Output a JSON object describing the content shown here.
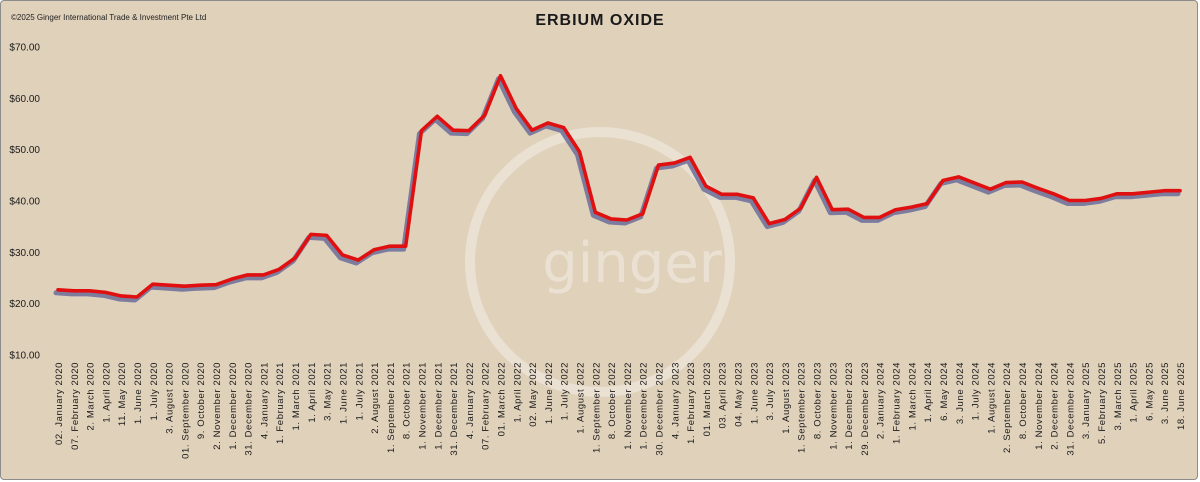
{
  "copyright": "©2025 Ginger International Trade & Investment Pte Ltd",
  "watermark": "ginger",
  "chart_data": {
    "type": "line",
    "title": "ERBIUM OXIDE",
    "ylim": [
      10,
      70
    ],
    "yticks": [
      "$10.00",
      "$20.00",
      "$30.00",
      "$40.00",
      "$50.00",
      "$60.00",
      "$70.00"
    ],
    "ytick_values": [
      10,
      20,
      30,
      40,
      50,
      60,
      70
    ],
    "grid": false,
    "line_color": "#e01010",
    "shadow_color": "#6a6d9a",
    "x_labels": [
      "02. January 2020",
      "07. February 2020",
      "2. March 2020",
      "1. April 2020",
      "11. May 2020",
      "1. June 2020",
      "1. July 2020",
      "3. August 2020",
      "01. September 2020",
      "9. October 2020",
      "2. November 2020",
      "1. December 2020",
      "31. December 2020",
      "4. January 2021",
      "1. February 2021",
      "1. March 2021",
      "1. April 2021",
      "3. May 2021",
      "1. June 2021",
      "1. July 2021",
      "2. August 2021",
      "1. September 2021",
      "8. October 2021",
      "1. November 2021",
      "1. December 2021",
      "31. December 2021",
      "4. January 2022",
      "07. February 2022",
      "01. March 2022",
      "1. April 2022",
      "02. May 2022",
      "1. June 2022",
      "1. July 2022",
      "1. August 2022",
      "1. September 2022",
      "8. October 2022",
      "1. November 2022",
      "1. December 2022",
      "30. December 2022",
      "4. January 2023",
      "1. February 2023",
      "01. March 2023",
      "03. April 2023",
      "04. May 2023",
      "1. June 2023",
      "3. July 2023",
      "1. August 2023",
      "1. September 2023",
      "8. October 2023",
      "1. November 2023",
      "1. December 2023",
      "29. December 2023",
      "2. January 2024",
      "1. February 2024",
      "1. March 2024",
      "1. April 2024",
      "6. May 2024",
      "3. June 2024",
      "1. July 2024",
      "1. August 2024",
      "2. September 2024",
      "8. October 2024",
      "1. November 2024",
      "2. December 2024",
      "31. December 2024",
      "3. January 2025",
      "5. February 2025",
      "3. March 2025",
      "1. April 2025",
      "6. May 2025",
      "3. June 2025",
      "18. June 2025"
    ],
    "values": [
      22.7,
      22.5,
      22.5,
      22.2,
      21.5,
      21.3,
      23.8,
      23.6,
      23.4,
      23.6,
      23.7,
      24.8,
      25.6,
      25.6,
      26.7,
      28.9,
      33.5,
      33.3,
      29.5,
      28.5,
      30.5,
      31.2,
      31.2,
      53.7,
      56.5,
      53.8,
      53.7,
      56.7,
      64.4,
      58.0,
      53.8,
      55.2,
      54.3,
      49.6,
      37.8,
      36.5,
      36.3,
      37.5,
      47.0,
      47.4,
      48.5,
      42.9,
      41.3,
      41.3,
      40.6,
      35.6,
      36.4,
      38.6,
      44.6,
      38.3,
      38.4,
      36.8,
      36.8,
      38.3,
      38.8,
      39.5,
      44.0,
      44.7,
      43.5,
      42.3,
      43.6,
      43.7,
      42.5,
      41.4,
      40.1,
      40.1,
      40.5,
      41.4,
      41.4,
      41.7,
      42.0,
      42.0
    ]
  }
}
